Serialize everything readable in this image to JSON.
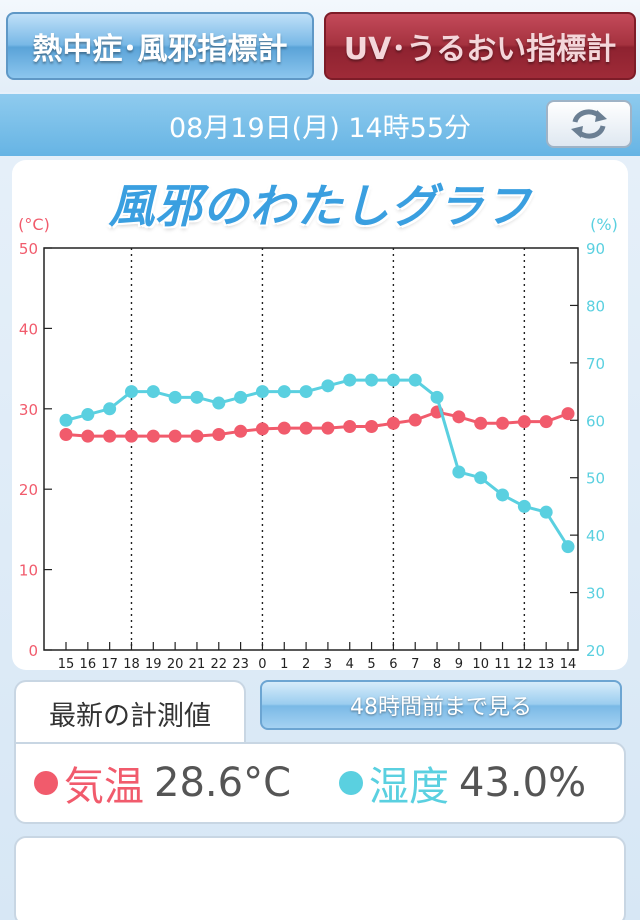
{
  "tabs": {
    "heat_label": "熱中症･風邪指標計",
    "uv_label": "UV･うるおい指標計"
  },
  "datetime": "08月19日(月) 14時55分",
  "refresh_icon": "refresh-icon",
  "graph_title": "風邪のわたしグラフ",
  "latest_tab_label": "最新の計測値",
  "history_button_label": "48時間前まで見る",
  "readings": {
    "temp_label": "気温",
    "temp_value": "28.6°C",
    "humid_label": "湿度",
    "humid_value": "43.0%"
  },
  "colors": {
    "temperature": "#f15b6c",
    "humidity": "#5ad0e0",
    "left_axis": "#f15b6c",
    "right_axis": "#5ad0e0"
  },
  "chart_data": {
    "type": "line",
    "title": "風邪のわたしグラフ",
    "x": [
      "15",
      "16",
      "17",
      "18",
      "19",
      "20",
      "21",
      "22",
      "23",
      "0",
      "1",
      "2",
      "3",
      "4",
      "5",
      "6",
      "7",
      "8",
      "9",
      "10",
      "11",
      "12",
      "13",
      "14"
    ],
    "left_axis": {
      "unit_label": "(°C)",
      "ylim": [
        0,
        50
      ],
      "ticks": [
        0,
        10,
        20,
        30,
        40,
        50
      ]
    },
    "right_axis": {
      "unit_label": "(%)",
      "ylim": [
        20,
        90
      ],
      "ticks": [
        20,
        30,
        40,
        50,
        60,
        70,
        80,
        90
      ]
    },
    "grid_dotted_at": [
      "18",
      "0",
      "6",
      "12"
    ],
    "series": [
      {
        "name": "気温",
        "axis": "left",
        "values": [
          26.8,
          26.6,
          26.6,
          26.6,
          26.6,
          26.6,
          26.6,
          26.8,
          27.2,
          27.5,
          27.6,
          27.6,
          27.6,
          27.8,
          27.8,
          28.2,
          28.6,
          29.6,
          29.0,
          28.2,
          28.2,
          28.4,
          28.4,
          29.4
        ]
      },
      {
        "name": "湿度",
        "axis": "right",
        "values": [
          60,
          61,
          62,
          65,
          65,
          64,
          64,
          63,
          64,
          65,
          65,
          65,
          66,
          67,
          67,
          67,
          67,
          64,
          51,
          50,
          47,
          45,
          44,
          38
        ]
      }
    ]
  }
}
